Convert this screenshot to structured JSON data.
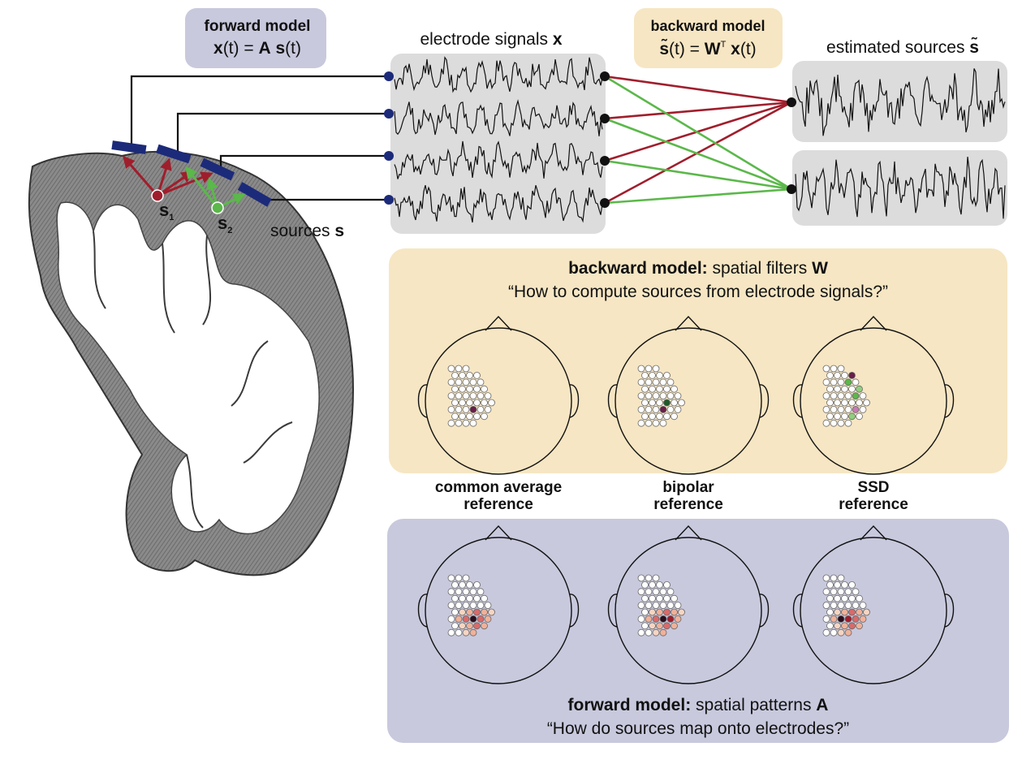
{
  "forward_box": {
    "title": "forward model",
    "x": "x",
    "t1": "(t)",
    "eq": " = ",
    "A": "A",
    "s": "s",
    "t2": "(t)"
  },
  "backward_box": {
    "title": "backward model",
    "s_tilde": "s̃",
    "t1": "(t)",
    "eq": " = ",
    "W": "W",
    "T": "T",
    "x": "x",
    "t2": "(t)"
  },
  "electrode_label": {
    "text": "electrode signals ",
    "sym": "x"
  },
  "estimated_label": {
    "text": "estimated sources ",
    "sym": "s̃"
  },
  "brain": {
    "source1": "s",
    "source1_sub": "1",
    "source2": "s",
    "source2_sub": "2",
    "sources_text": "sources ",
    "sources_sym": "s"
  },
  "backward_panel": {
    "title_bold": "backward model:",
    "title_rest": " spatial filters ",
    "title_sym": "W",
    "question": "“How to compute sources from electrode signals?”"
  },
  "forward_panel": {
    "title_bold": "forward model:",
    "title_rest": " spatial patterns ",
    "title_sym": "A",
    "question": "“How do sources map onto electrodes?”"
  },
  "references": [
    {
      "line1": "common average",
      "line2": "reference"
    },
    {
      "line1": "bipolar",
      "line2": "reference"
    },
    {
      "line1": "SSD",
      "line2": "reference"
    }
  ],
  "colors": {
    "forward_bg": "#c8c9dd",
    "backward_bg": "#f6e6c3",
    "signal_bg": "#dcdcdc",
    "source1": "#a01e2c",
    "source2": "#5bb84a",
    "electrode": "#1c2a7a"
  }
}
